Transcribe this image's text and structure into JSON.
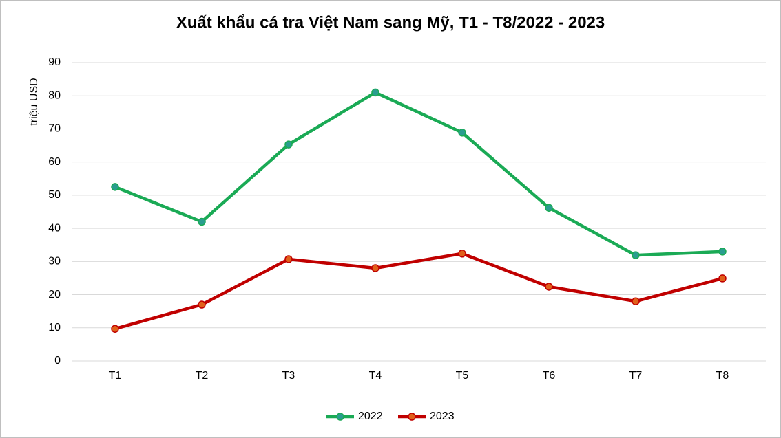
{
  "chart_data": {
    "type": "line",
    "title": "Xuất khẩu cá tra Việt Nam sang Mỹ, T1 - T8/2022 - 2023",
    "y_label": "triệu USD",
    "categories": [
      "T1",
      "T2",
      "T3",
      "T4",
      "T5",
      "T6",
      "T7",
      "T8"
    ],
    "series": [
      {
        "name": "2022",
        "color": "#1aaa55",
        "marker_color": "#2a9d8f",
        "values": [
          52.5,
          42,
          65.3,
          81,
          68.9,
          46.2,
          31.9,
          33
        ]
      },
      {
        "name": "2023",
        "color": "#c00000",
        "marker_color": "#e0601a",
        "values": [
          9.7,
          17,
          30.7,
          28,
          32.4,
          22.4,
          18,
          24.9
        ]
      }
    ],
    "ylim": [
      0,
      90
    ],
    "yticks": [
      0,
      10,
      20,
      30,
      40,
      50,
      60,
      70,
      80,
      90
    ],
    "grid": true,
    "legend": "bottom"
  }
}
